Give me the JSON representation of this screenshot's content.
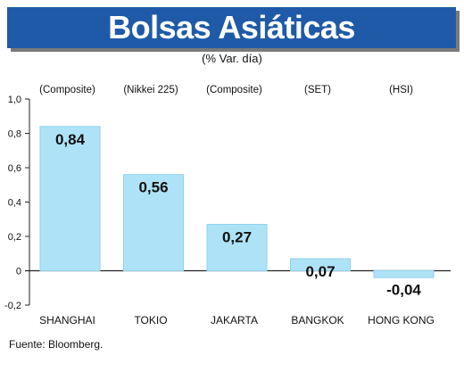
{
  "header": {
    "title": "Bolsas Asiáticas",
    "subtitle": "(% Var. día)"
  },
  "footer": {
    "source": "Fuente: Bloomberg."
  },
  "colors": {
    "title_bg": "#1f5aa8",
    "bar_fill": "#aee3f7",
    "bar_stroke": "#8fd2ee"
  },
  "chart_data": {
    "type": "bar",
    "title": "Bolsas Asiáticas",
    "subtitle": "(% Var. día)",
    "categories": [
      "SHANGHAI",
      "TOKIO",
      "JAKARTA",
      "BANGKOK",
      "HONG KONG"
    ],
    "index_labels": [
      "(Composite)",
      "(Nikkei 225)",
      "(Composite)",
      "(SET)",
      "(HSI)"
    ],
    "values": [
      0.84,
      0.56,
      0.27,
      0.07,
      -0.04
    ],
    "value_labels": [
      "0,84",
      "0,56",
      "0,27",
      "0,07",
      "-0,04"
    ],
    "ylim": [
      -0.2,
      1.0
    ],
    "yticks": [
      1.0,
      0.8,
      0.6,
      0.4,
      0.2,
      0,
      -0.2
    ],
    "ytick_labels": [
      "1,0",
      "0,8",
      "0,6",
      "0,4",
      "0,2",
      "0",
      "-0,2"
    ],
    "grid": false,
    "xlabel": "",
    "ylabel": ""
  }
}
